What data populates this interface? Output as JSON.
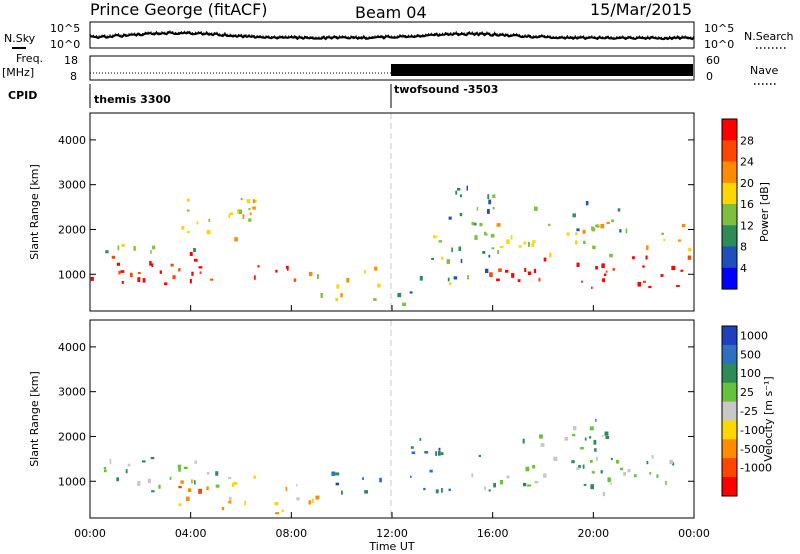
{
  "header": {
    "station": "Prince George (fitACF)",
    "beam": "Beam 04",
    "date": "15/Mar/2015"
  },
  "status_panels": {
    "nsky_label": "N.Sky",
    "nsearch_label": "N.Search",
    "noise_ticks": [
      "10^5",
      "10^0"
    ],
    "freq_label": "Freq.",
    "freq_unit": "[MHz]",
    "freq_ticks": [
      "18",
      "8"
    ],
    "nave_label": "Nave",
    "nave_ticks": [
      "60",
      "0"
    ],
    "cpid_label": "CPID",
    "cpid_segments": [
      {
        "name": "themis 3300",
        "start_hour": 0
      },
      {
        "name": "twofsound -3503",
        "start_hour": 12
      }
    ]
  },
  "chart_data": [
    {
      "type": "heatmap",
      "panel": "power",
      "ylabel": "Slant Range [km]",
      "ylim": [
        180,
        4600
      ],
      "yticks": [
        1000,
        2000,
        3000,
        4000
      ],
      "x_range_hours": [
        0,
        24
      ],
      "xtick_labels": [
        "00:00",
        "04:00",
        "08:00",
        "12:00",
        "16:00",
        "20:00",
        "00:00"
      ],
      "colorbar": {
        "label": "Power [dB]",
        "ticks": [
          "28",
          "24",
          "20",
          "16",
          "12",
          "8",
          "4"
        ],
        "colors": [
          "#ff0000",
          "#ff4500",
          "#ff8c00",
          "#ffd700",
          "#7fbf3f",
          "#2e8b57",
          "#1f4fbf",
          "#0000ff"
        ]
      },
      "echo_regions": [
        {
          "t0": 0.0,
          "t1": 5.0,
          "r0": 750,
          "r1": 1500,
          "level": "28"
        },
        {
          "t0": 0.0,
          "t1": 5.0,
          "r0": 1500,
          "r1": 1800,
          "level": "12"
        },
        {
          "t0": 3.5,
          "t1": 6.5,
          "r0": 1800,
          "r1": 2900,
          "level": "16"
        },
        {
          "t0": 5.0,
          "t1": 9.0,
          "r0": 900,
          "r1": 1250,
          "level": "24"
        },
        {
          "t0": 9.0,
          "t1": 11.5,
          "r0": 400,
          "r1": 1200,
          "level": "16"
        },
        {
          "t0": 11.5,
          "t1": 13.0,
          "r0": 250,
          "r1": 700,
          "level": "8"
        },
        {
          "t0": 13.0,
          "t1": 14.5,
          "r0": 800,
          "r1": 2000,
          "level": "12"
        },
        {
          "t0": 14.0,
          "t1": 16.0,
          "r0": 900,
          "r1": 3000,
          "level": "8"
        },
        {
          "t0": 15.5,
          "t1": 24.0,
          "r0": 700,
          "r1": 1450,
          "level": "28"
        },
        {
          "t0": 15.5,
          "t1": 24.0,
          "r0": 1450,
          "r1": 2200,
          "level": "16"
        },
        {
          "t0": 17.5,
          "t1": 21.5,
          "r0": 2000,
          "r1": 2700,
          "level": "8"
        }
      ]
    },
    {
      "type": "heatmap",
      "panel": "velocity",
      "ylabel": "Slant Range [km]",
      "xlabel": "Time UT",
      "ylim": [
        180,
        4600
      ],
      "yticks": [
        1000,
        2000,
        3000,
        4000
      ],
      "x_range_hours": [
        0,
        24
      ],
      "xtick_labels": [
        "00:00",
        "04:00",
        "08:00",
        "12:00",
        "16:00",
        "20:00",
        "00:00"
      ],
      "colorbar": {
        "label": "Velocity [m s⁻¹]",
        "ticks": [
          "1000",
          "500",
          "100",
          "25",
          "-25",
          "-100",
          "-500",
          "-1000"
        ],
        "colors": [
          "#1f3fbf",
          "#2f6fbf",
          "#2e8b57",
          "#66c23a",
          "#c8c8c8",
          "#ffd700",
          "#ff8c00",
          "#ff4500",
          "#ff0000"
        ]
      },
      "echo_regions": [
        {
          "t0": 0.0,
          "t1": 5.0,
          "r0": 800,
          "r1": 1550,
          "level": "25"
        },
        {
          "t0": 3.0,
          "t1": 5.0,
          "r0": 500,
          "r1": 1050,
          "level": "-500"
        },
        {
          "t0": 5.0,
          "t1": 9.0,
          "r0": 300,
          "r1": 1200,
          "level": "-100"
        },
        {
          "t0": 9.5,
          "t1": 11.5,
          "r0": 700,
          "r1": 1300,
          "level": "500"
        },
        {
          "t0": 12.5,
          "t1": 14.5,
          "r0": 800,
          "r1": 2000,
          "level": "500"
        },
        {
          "t0": 15.0,
          "t1": 24.0,
          "r0": 750,
          "r1": 1600,
          "level": "25"
        },
        {
          "t0": 17.0,
          "t1": 21.0,
          "r0": 1700,
          "r1": 2400,
          "level": "25"
        }
      ]
    }
  ]
}
